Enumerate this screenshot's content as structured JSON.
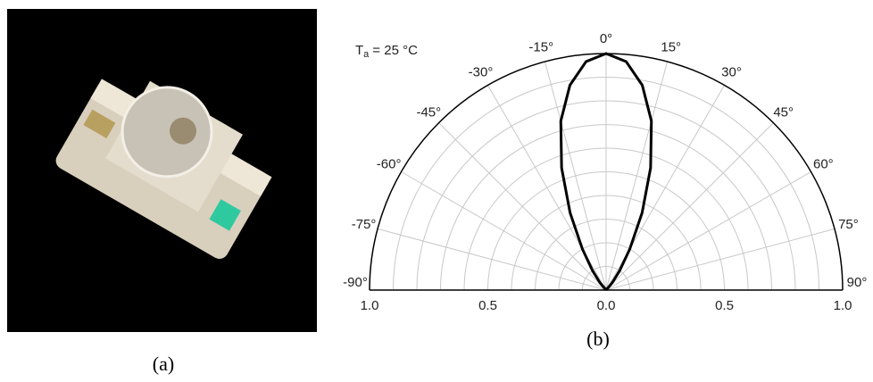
{
  "chart_data": {
    "type": "polar",
    "annotation": {
      "symbol": "T",
      "subscript": "a",
      "text": "= 25 °C"
    },
    "theta": [
      -45,
      -40,
      -35,
      -30,
      -25,
      -20,
      -15,
      -10,
      -5,
      0,
      5,
      10,
      15,
      20,
      25,
      30,
      35,
      40,
      45
    ],
    "series": [
      {
        "color": "#000000",
        "values": [
          0,
          0.04,
          0.1,
          0.2,
          0.36,
          0.55,
          0.74,
          0.88,
          0.97,
          1.0,
          0.97,
          0.88,
          0.74,
          0.55,
          0.36,
          0.2,
          0.1,
          0.04,
          0
        ]
      }
    ],
    "thetalim": [
      -90,
      90
    ],
    "thetaticks": [
      {
        "value": -90,
        "label": "-90°"
      },
      {
        "value": -75,
        "label": "-75°"
      },
      {
        "value": -60,
        "label": "-60°"
      },
      {
        "value": -45,
        "label": "-45°"
      },
      {
        "value": -30,
        "label": "-30°"
      },
      {
        "value": -15,
        "label": "-15°"
      },
      {
        "value": 0,
        "label": "0°"
      },
      {
        "value": 15,
        "label": "15°"
      },
      {
        "value": 30,
        "label": "30°"
      },
      {
        "value": 45,
        "label": "45°"
      },
      {
        "value": 60,
        "label": "60°"
      },
      {
        "value": 75,
        "label": "75°"
      },
      {
        "value": 90,
        "label": "90°"
      }
    ],
    "rlim": [
      0,
      1
    ],
    "rticks": [
      {
        "value": 0,
        "label": "0.0"
      },
      {
        "value": 0.5,
        "label": "0.5"
      },
      {
        "value": 1,
        "label": "1.0"
      }
    ],
    "rminorticks": [
      0.1,
      0.2,
      0.3,
      0.4,
      0.6,
      0.7,
      0.8,
      0.9
    ],
    "grid": true
  },
  "captions": {
    "a": "(a)",
    "b": "(b)"
  }
}
